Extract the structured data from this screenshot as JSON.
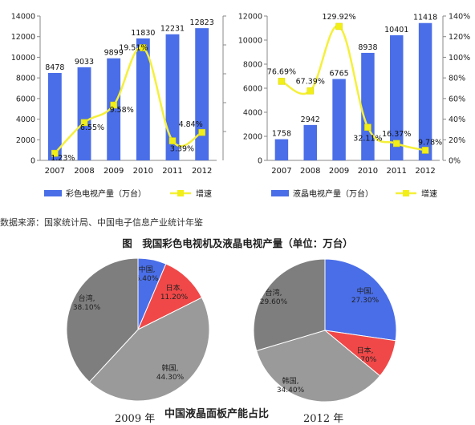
{
  "source_note": "数据来源：国家统计局、中国电子信息产业统计年鉴",
  "figure_caption": "图　我国彩色电视机及液晶电视产量（单位：万台）",
  "pie_caption": "中国液晶面板产能占比",
  "pie_years": [
    "2009 年",
    "2012 年"
  ],
  "colors": {
    "bar": "#4a6ee8",
    "line": "#f5f03a",
    "marker": "#f2ee18",
    "pie": {
      "china": "#4a6ee8",
      "japan": "#f04848",
      "korea": "#9a9a9a",
      "taiwan": "#7e7e7e"
    }
  },
  "chart_data": [
    {
      "type": "bar",
      "categories": [
        "2007",
        "2008",
        "2009",
        "2010",
        "2011",
        "2012"
      ],
      "series": [
        {
          "name": "彩色电视产量（万台）",
          "type": "bar",
          "values": [
            8478,
            9033,
            9899,
            11830,
            12231,
            12823
          ],
          "labels": [
            "8478",
            "9033",
            "9899",
            "11830",
            "12231",
            "12823"
          ]
        },
        {
          "name": "增速",
          "type": "line",
          "axis": "right",
          "values": [
            1.23,
            6.55,
            9.58,
            19.51,
            3.39,
            4.84
          ],
          "labels": [
            "1.23%",
            "6.55%",
            "9.58%",
            "19.51%",
            "3.39%",
            "4.84%"
          ]
        }
      ],
      "ylim": [
        0,
        14000
      ],
      "yticks": [
        "0",
        "2000",
        "4000",
        "6000",
        "8000",
        "10000",
        "12000",
        "14000"
      ],
      "y2lim": [
        0,
        25
      ],
      "legend_position": "bottom"
    },
    {
      "type": "bar",
      "categories": [
        "2007",
        "2008",
        "2009",
        "2010",
        "2011",
        "2012"
      ],
      "series": [
        {
          "name": "液晶电视产量（万台）",
          "type": "bar",
          "values": [
            1758,
            2942,
            6765,
            8938,
            10401,
            11418
          ],
          "labels": [
            "1758",
            "2942",
            "6765",
            "8938",
            "10401",
            "11418"
          ]
        },
        {
          "name": "增速",
          "type": "line",
          "axis": "right",
          "values": [
            76.69,
            67.39,
            129.92,
            32.11,
            16.37,
            9.78
          ],
          "labels": [
            "76.69%",
            "67.39%",
            "129.92%",
            "32.11%",
            "16.37%",
            "9.78%"
          ]
        }
      ],
      "ylim": [
        0,
        12000
      ],
      "yticks": [
        "0",
        "2000",
        "4000",
        "6000",
        "8000",
        "10000",
        "12000"
      ],
      "y2lim": [
        0,
        140
      ],
      "y2ticks": [
        "0%",
        "20%",
        "40%",
        "60%",
        "80%",
        "100%",
        "120%",
        "140%"
      ],
      "legend_position": "bottom"
    },
    {
      "type": "pie",
      "slices": [
        {
          "label": "中国,",
          "value": 6.4,
          "pct": "6.40%",
          "color_key": "china"
        },
        {
          "label": "日本,",
          "value": 11.2,
          "pct": "11.20%",
          "color_key": "japan"
        },
        {
          "label": "韩国,",
          "value": 44.3,
          "pct": "44.30%",
          "color_key": "korea"
        },
        {
          "label": "台湾,",
          "value": 38.1,
          "pct": "38.10%",
          "color_key": "taiwan"
        }
      ]
    },
    {
      "type": "pie",
      "slices": [
        {
          "label": "中国,",
          "value": 27.3,
          "pct": "27.30%",
          "color_key": "china"
        },
        {
          "label": "日本,",
          "value": 8.7,
          "pct": "8.70%",
          "color_key": "japan"
        },
        {
          "label": "韩国,",
          "value": 34.4,
          "pct": "34.40%",
          "color_key": "korea"
        },
        {
          "label": "台湾,",
          "value": 29.6,
          "pct": "29.60%",
          "color_key": "taiwan"
        }
      ]
    }
  ]
}
